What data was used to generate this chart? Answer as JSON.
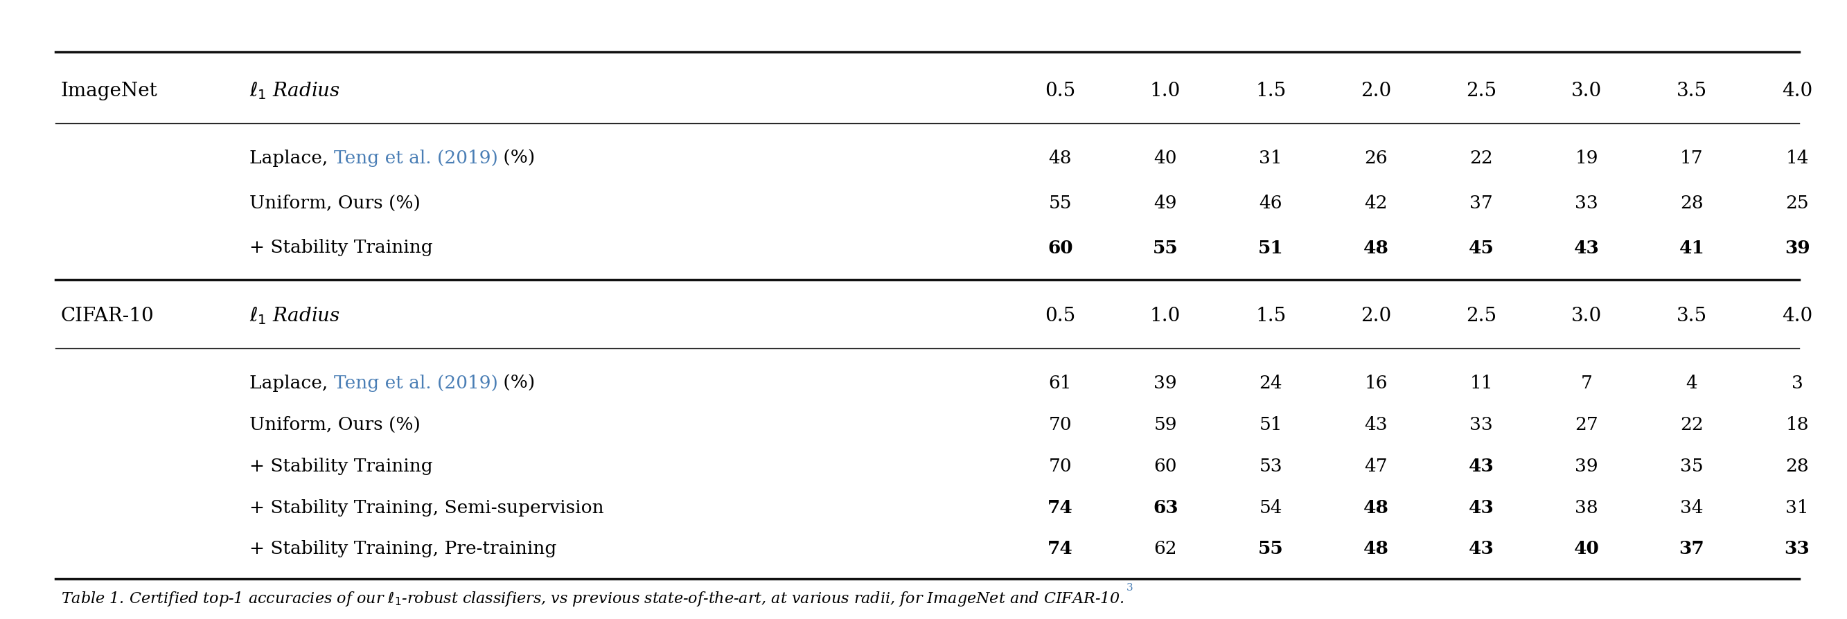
{
  "background_color": "#ffffff",
  "text_color": "#000000",
  "link_color": "#4a7eb5",
  "radius_values": [
    "0.5",
    "1.0",
    "1.5",
    "2.0",
    "2.5",
    "3.0",
    "3.5",
    "4.0"
  ],
  "imagenet_header_col1": "ImageNet",
  "imagenet_header_col2": "$\\ell_1$ Radius",
  "cifar_header_col1": "CIFAR-10",
  "cifar_header_col2": "$\\ell_1$ Radius",
  "imagenet_rows": [
    {
      "label_plain": "Laplace, ",
      "label_link": "Teng et al. (2019)",
      "label_suffix": " (%)",
      "values": [
        "48",
        "40",
        "31",
        "26",
        "22",
        "19",
        "17",
        "14"
      ],
      "bold_values": [
        false,
        false,
        false,
        false,
        false,
        false,
        false,
        false
      ]
    },
    {
      "label_plain": "Uniform, Ours (%)",
      "label_link": "",
      "label_suffix": "",
      "values": [
        "55",
        "49",
        "46",
        "42",
        "37",
        "33",
        "28",
        "25"
      ],
      "bold_values": [
        false,
        false,
        false,
        false,
        false,
        false,
        false,
        false
      ]
    },
    {
      "label_plain": "+ Stability Training",
      "label_link": "",
      "label_suffix": "",
      "values": [
        "60",
        "55",
        "51",
        "48",
        "45",
        "43",
        "41",
        "39"
      ],
      "bold_values": [
        true,
        true,
        true,
        true,
        true,
        true,
        true,
        true
      ]
    }
  ],
  "cifar_rows": [
    {
      "label_plain": "Laplace, ",
      "label_link": "Teng et al. (2019)",
      "label_suffix": " (%)",
      "values": [
        "61",
        "39",
        "24",
        "16",
        "11",
        "7",
        "4",
        "3"
      ],
      "bold_values": [
        false,
        false,
        false,
        false,
        false,
        false,
        false,
        false
      ]
    },
    {
      "label_plain": "Uniform, Ours (%)",
      "label_link": "",
      "label_suffix": "",
      "values": [
        "70",
        "59",
        "51",
        "43",
        "33",
        "27",
        "22",
        "18"
      ],
      "bold_values": [
        false,
        false,
        false,
        false,
        false,
        false,
        false,
        false
      ]
    },
    {
      "label_plain": "+ Stability Training",
      "label_link": "",
      "label_suffix": "",
      "values": [
        "70",
        "60",
        "53",
        "47",
        "43",
        "39",
        "35",
        "28"
      ],
      "bold_values": [
        false,
        false,
        false,
        false,
        true,
        false,
        false,
        false
      ]
    },
    {
      "label_plain": "+ Stability Training, Semi-supervision",
      "label_link": "",
      "label_suffix": "",
      "values": [
        "74",
        "63",
        "54",
        "48",
        "43",
        "38",
        "34",
        "31"
      ],
      "bold_values": [
        true,
        true,
        false,
        true,
        true,
        false,
        false,
        false
      ]
    },
    {
      "label_plain": "+ Stability Training, Pre-training",
      "label_link": "",
      "label_suffix": "",
      "values": [
        "74",
        "62",
        "55",
        "48",
        "43",
        "40",
        "37",
        "33"
      ],
      "bold_values": [
        true,
        false,
        true,
        true,
        true,
        true,
        true,
        true
      ]
    }
  ],
  "caption": "Table 1. Certified top-1 accuracies of our $\\ell_1$-robust classifiers, vs previous state-of-the-art, at various radii, for ImageNet and CIFAR-10.",
  "caption_superscript": "3"
}
